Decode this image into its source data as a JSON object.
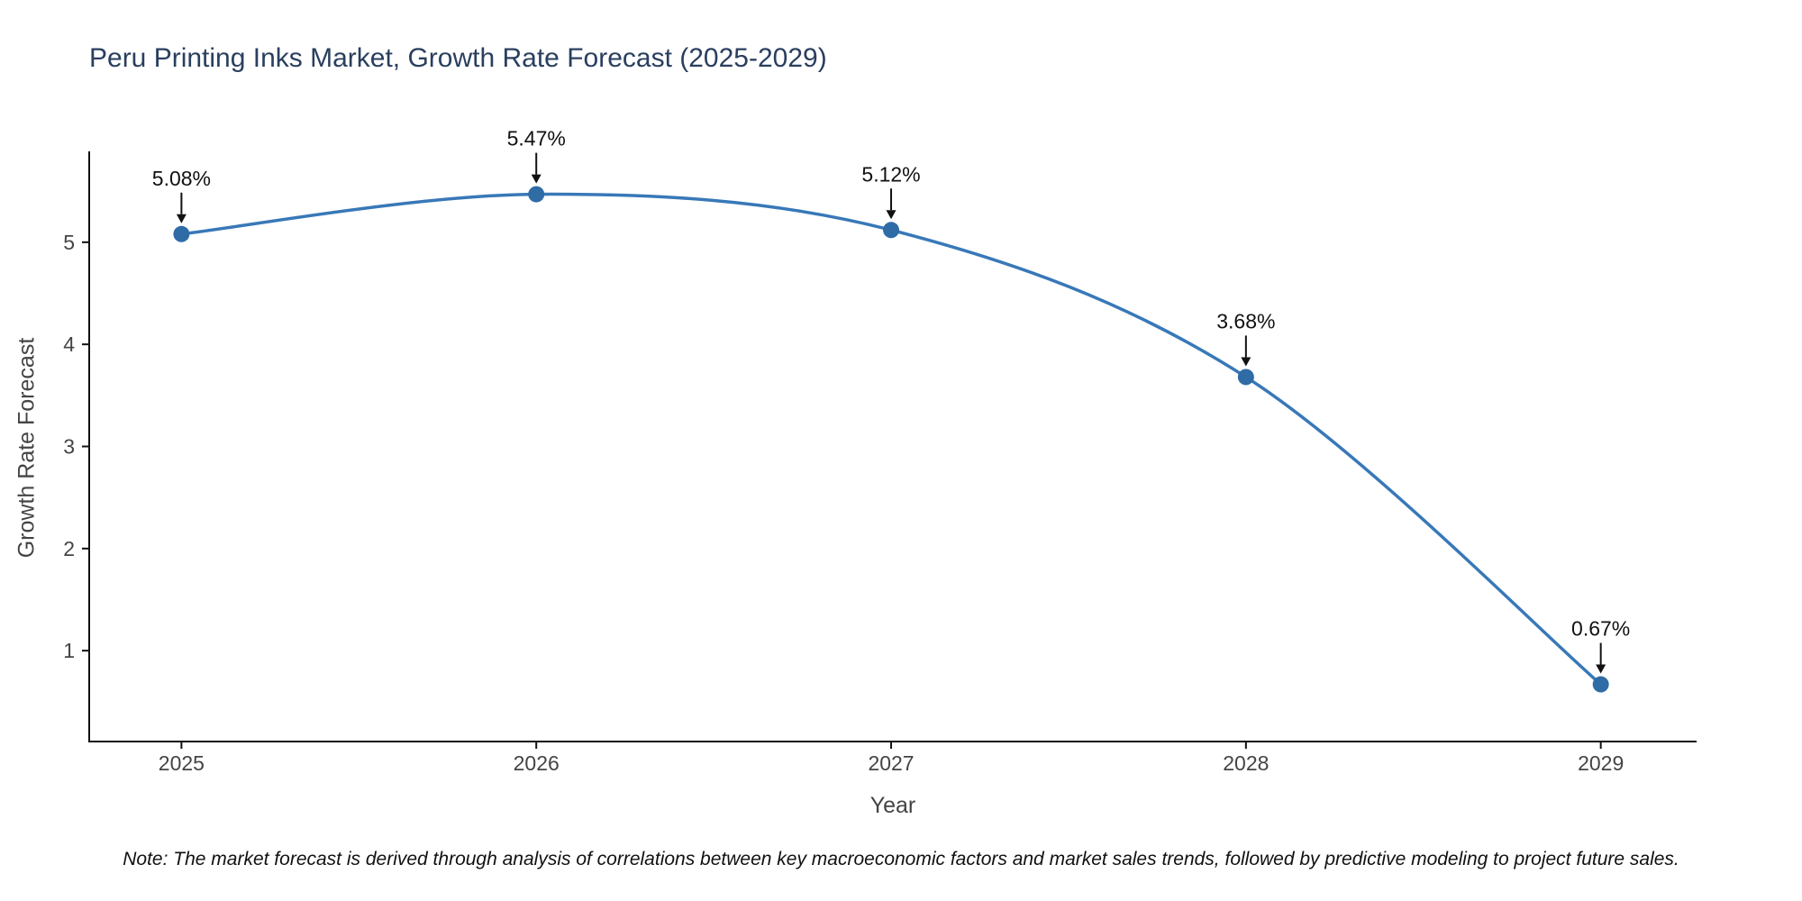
{
  "chart_data": {
    "type": "line",
    "title": "Peru Printing Inks Market, Growth Rate Forecast (2025-2029)",
    "xlabel": "Year",
    "ylabel": "Growth Rate Forecast",
    "x": [
      2025,
      2026,
      2027,
      2028,
      2029
    ],
    "series": [
      {
        "name": "Growth Rate Forecast",
        "values": [
          5.08,
          5.47,
          5.12,
          3.68,
          0.67
        ]
      }
    ],
    "point_labels": [
      "5.08%",
      "5.47%",
      "5.12%",
      "3.68%",
      "0.67%"
    ],
    "x_tick_labels": [
      "2025",
      "2026",
      "2027",
      "2028",
      "2029"
    ],
    "y_ticks": [
      1,
      2,
      3,
      4,
      5
    ],
    "y_tick_labels": [
      "1",
      "2",
      "3",
      "4",
      "5"
    ],
    "xlim": [
      2024.74,
      2029.27
    ],
    "ylim": [
      0.11,
      5.89
    ],
    "grid": false,
    "legend": false,
    "line_shape": "spline",
    "colors": {
      "line": "#3878b8",
      "marker": "#2f6ca6",
      "annotation": "#111111",
      "axis": "#111111",
      "tick_text": "#444444",
      "title_text": "#2a3f5f"
    }
  },
  "note": "Note: The market forecast is derived through analysis of correlations between key macroeconomic factors and market sales trends, followed by predictive modeling to project future sales."
}
